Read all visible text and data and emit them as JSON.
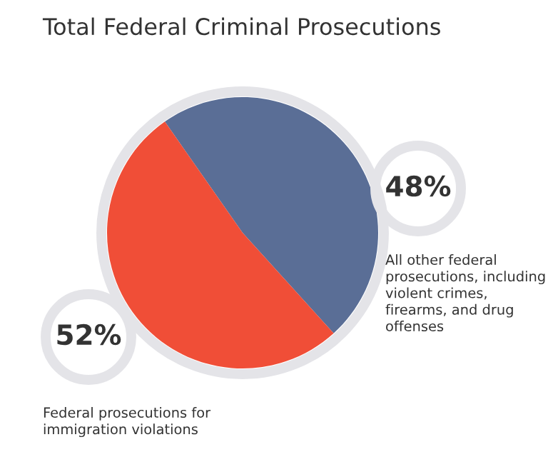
{
  "chart_data": {
    "type": "pie",
    "title": "Total Federal Criminal Prosecutions",
    "categories": [
      "All other federal prosecutions, including violent crimes, firearms, and drug offenses",
      "Federal prosecutions for immigration violations"
    ],
    "values": [
      48,
      52
    ],
    "colors": [
      "#5a6e96",
      "#f04e37"
    ],
    "value_labels": [
      "48%",
      "52%"
    ]
  }
}
